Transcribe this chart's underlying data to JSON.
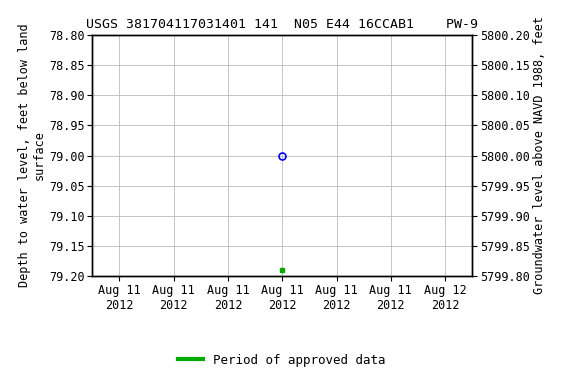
{
  "title": "USGS 381704117031401 141  N05 E44 16CCAB1    PW-9",
  "ylabel_left": "Depth to water level, feet below land\nsurface",
  "ylabel_right": "Groundwater level above NAVD 1988, feet",
  "ylim_left": [
    78.8,
    79.2
  ],
  "ylim_right": [
    5799.8,
    5800.2
  ],
  "y_ticks_left": [
    78.8,
    78.85,
    78.9,
    78.95,
    79.0,
    79.05,
    79.1,
    79.15,
    79.2
  ],
  "y_ticks_right": [
    5799.8,
    5799.85,
    5799.9,
    5799.95,
    5800.0,
    5800.05,
    5800.1,
    5800.15,
    5800.2
  ],
  "blue_point_x": 3.0,
  "blue_point_y": 79.0,
  "green_point_x": 3.0,
  "green_point_y": 79.19,
  "x_tick_labels": [
    "Aug 11\n2012",
    "Aug 11\n2012",
    "Aug 11\n2012",
    "Aug 11\n2012",
    "Aug 11\n2012",
    "Aug 11\n2012",
    "Aug 12\n2012"
  ],
  "x_tick_positions": [
    0,
    1,
    2,
    3,
    4,
    5,
    6
  ],
  "xlim": [
    -0.5,
    6.5
  ],
  "bg_color": "#ffffff",
  "grid_color": "#bbbbbb",
  "legend_label": "Period of approved data",
  "legend_color": "#00aa00",
  "title_fontsize": 9.5,
  "axis_label_fontsize": 8.5,
  "tick_fontsize": 8.5,
  "legend_fontsize": 9
}
